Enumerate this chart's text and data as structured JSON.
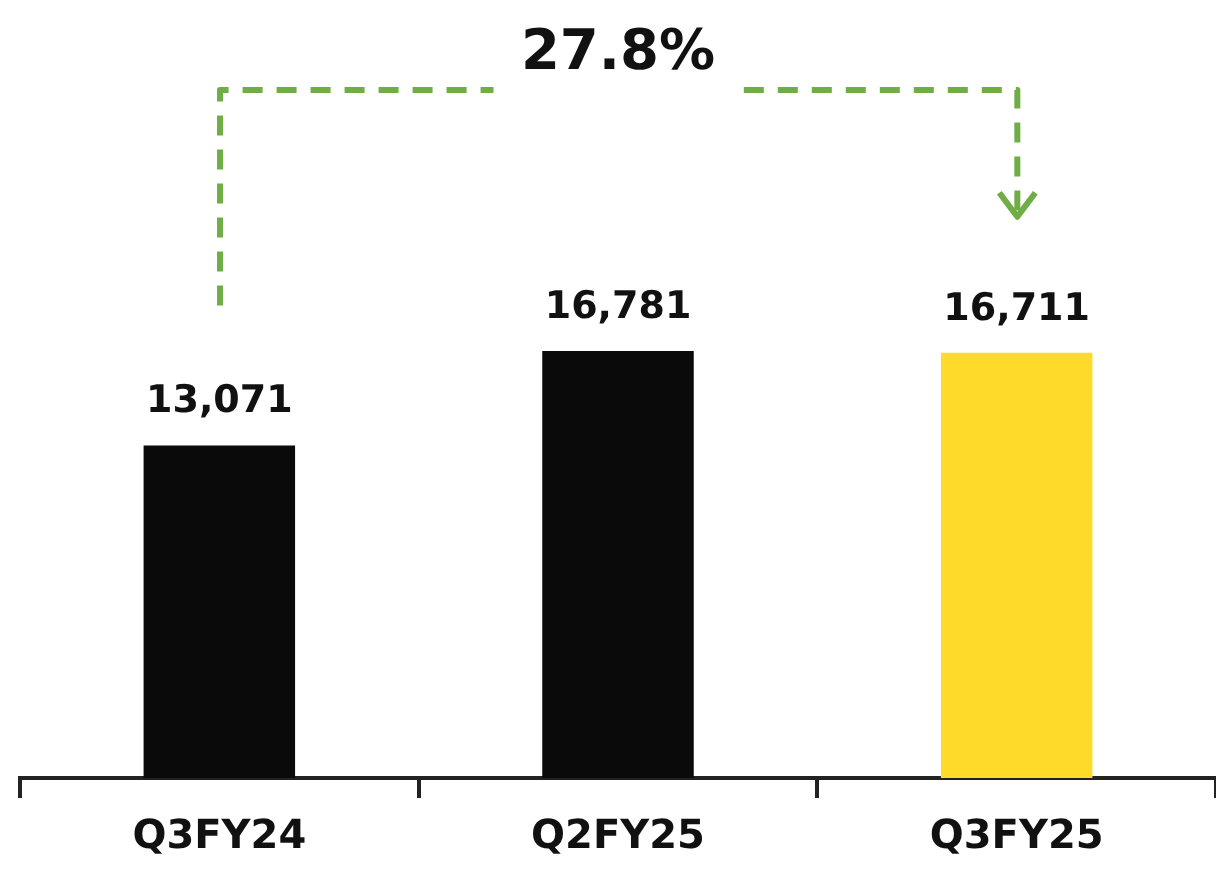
{
  "chart_data": {
    "type": "bar",
    "categories": [
      "Q3FY24",
      "Q2FY25",
      "Q3FY25"
    ],
    "values": [
      13071,
      16781,
      16711
    ],
    "colors": [
      "#0a0a0a",
      "#0a0a0a",
      "#fedb2a"
    ],
    "value_labels": [
      "13,071",
      "16,781",
      "16,711"
    ],
    "grid": false,
    "legend": false,
    "annotations": [
      "27.8%"
    ]
  }
}
